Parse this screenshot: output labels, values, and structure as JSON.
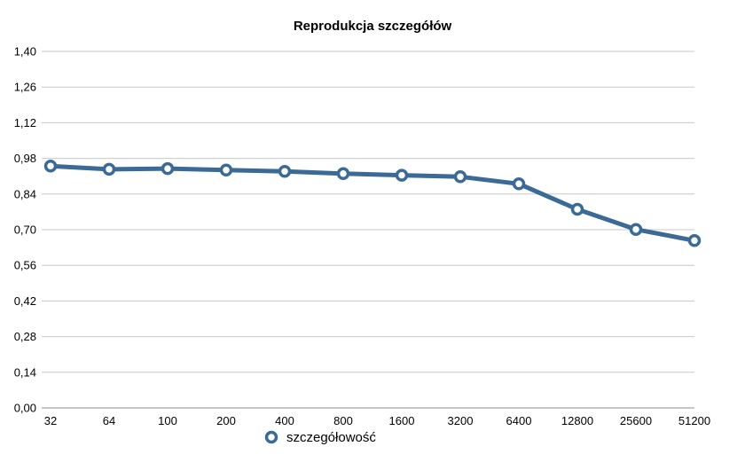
{
  "chart_data": {
    "type": "line",
    "title": "Reprodukcja szczegółów",
    "xlabel": "",
    "ylabel": "",
    "categories": [
      "32",
      "64",
      "100",
      "200",
      "400",
      "800",
      "1600",
      "3200",
      "6400",
      "12800",
      "25600",
      "51200"
    ],
    "series": [
      {
        "name": "szczegółowość",
        "values": [
          0.95,
          0.937,
          0.94,
          0.934,
          0.929,
          0.92,
          0.914,
          0.908,
          0.88,
          0.78,
          0.701,
          0.657
        ],
        "color": "#3b6a96"
      }
    ],
    "yticks": [
      "1,40",
      "1,26",
      "1,12",
      "0,98",
      "0,84",
      "0,70",
      "0,56",
      "0,42",
      "0,28",
      "0,14",
      "0,00"
    ],
    "ylim": [
      0,
      1.4
    ],
    "grid": true,
    "legend_position": "bottom"
  }
}
